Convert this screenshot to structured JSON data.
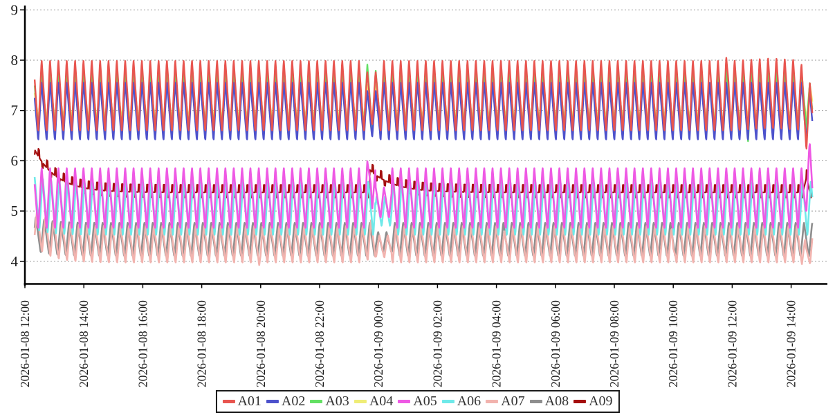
{
  "figure": {
    "background": "#ffffff",
    "axis_color": "#000000",
    "grid_color": "#999999",
    "tick_label_color": "#1a1a1a"
  },
  "legend": {
    "items": [
      {
        "label": "A01",
        "color": "#e8554f"
      },
      {
        "label": "A02",
        "color": "#4d52cc"
      },
      {
        "label": "A03",
        "color": "#63e063"
      },
      {
        "label": "A04",
        "color": "#efed77"
      },
      {
        "label": "A05",
        "color": "#ee59e4"
      },
      {
        "label": "A06",
        "color": "#6fe9e9"
      },
      {
        "label": "A07",
        "color": "#f2b3ae"
      },
      {
        "label": "A08",
        "color": "#8e8e8e"
      },
      {
        "label": "A09",
        "color": "#a40f0f"
      }
    ]
  },
  "chart_data": {
    "type": "line",
    "title": "",
    "xlabel": "",
    "ylabel": "",
    "grid": "horizontal-dashed",
    "legend_position": "bottom-center",
    "y_axis": {
      "min": 3.55,
      "max": 9.05,
      "ticks": [
        4,
        5,
        6,
        7,
        8,
        9
      ]
    },
    "x_axis": {
      "start": "2026-01-08 12:00",
      "end": "2026-01-09 14:00",
      "tick_interval_hours": 2,
      "tick_hours": [
        0,
        2,
        4,
        6,
        8,
        10,
        12,
        14,
        16,
        18,
        20,
        22,
        24,
        26
      ],
      "tick_labels": [
        "2026-01-08 12:00",
        "2026-01-08 14:00",
        "2026-01-08 16:00",
        "2026-01-08 18:00",
        "2026-01-08 20:00",
        "2026-01-08 22:00",
        "2026-01-09 00:00",
        "2026-01-09 02:00",
        "2026-01-09 04:00",
        "2026-01-09 06:00",
        "2026-01-09 08:00",
        "2026-01-09 10:00",
        "2026-01-09 12:00",
        "2026-01-09 14:00"
      ]
    },
    "t_start_hours": 0.33,
    "t_end_hours": 26.72,
    "oscillation_period_hours": 0.2833,
    "rise_fraction": 0.4,
    "render_order": [
      "A04",
      "A03",
      "A02",
      "A01",
      "A08",
      "A07",
      "A09",
      "A06",
      "A05"
    ],
    "series": [
      {
        "name": "A01",
        "color": "#e8554f",
        "pattern": "triangle",
        "min": 6.55,
        "max": 8.02,
        "phase": 0.6,
        "damp": [
          {
            "from": 11.55,
            "to": 12.05,
            "scale": 0.75,
            "offset": -0.05
          }
        ],
        "bumps": [
          {
            "t": 23.87,
            "w": 0.1,
            "a": 0.2
          },
          {
            "t": 25.3,
            "w": 1.3,
            "a": 0.05
          },
          {
            "t": 26.6,
            "w": 0.3,
            "a": -0.5
          }
        ]
      },
      {
        "name": "A02",
        "color": "#4d52cc",
        "pattern": "triangle",
        "min": 6.38,
        "max": 7.58,
        "phase": 0.6,
        "damp": [
          {
            "from": 11.55,
            "to": 12.05,
            "scale": 0.8,
            "offset": -0.05
          }
        ],
        "bumps": [
          {
            "t": 26.68,
            "w": 0.2,
            "a": -0.2
          }
        ]
      },
      {
        "name": "A03",
        "color": "#63e063",
        "pattern": "triangle",
        "min": 6.63,
        "max": 7.8,
        "phase": 0.61,
        "bumps": [
          {
            "t": 11.62,
            "w": 0.12,
            "a": 0.12
          },
          {
            "t": 23.25,
            "w": 0.08,
            "a": -0.3
          },
          {
            "t": 24.55,
            "w": 0.08,
            "a": -0.3
          },
          {
            "t": 25.3,
            "w": 0.08,
            "a": -0.3
          },
          {
            "t": 26.66,
            "w": 0.15,
            "a": -0.3
          }
        ]
      },
      {
        "name": "A04",
        "color": "#efed77",
        "pattern": "triangle",
        "min": 6.82,
        "max": 7.52,
        "phase": 0.62,
        "bumps": [
          {
            "t": 23.7,
            "w": 0.08,
            "a": -0.35
          }
        ]
      },
      {
        "name": "A05",
        "color": "#ee59e4",
        "pattern": "triangle",
        "min": 4.62,
        "max": 5.88,
        "phase": 0.6,
        "damp": [
          {
            "from": 11.9,
            "to": 12.45,
            "scale": 0.5,
            "offset": -0.08
          }
        ],
        "bumps": [
          {
            "t": 11.74,
            "w": 0.16,
            "a": 0.56
          },
          {
            "t": 26.6,
            "w": 0.2,
            "a": 0.58
          }
        ]
      },
      {
        "name": "A06",
        "color": "#6fe9e9",
        "pattern": "triangle",
        "min": 4.5,
        "max": 5.62,
        "phase": 0.73,
        "decays": [
          {
            "t0": 0.33,
            "a": 0.12,
            "tau": 0.5
          }
        ],
        "damp": [
          {
            "from": 11.9,
            "to": 12.45,
            "scale": 0.55,
            "offset": -0.06
          }
        ]
      },
      {
        "name": "A07",
        "color": "#f2b3ae",
        "pattern": "triangle",
        "min": 3.95,
        "max": 4.72,
        "phase": 0.05,
        "decays": [
          {
            "t0": 0.33,
            "a": 0.35,
            "tau": 0.55
          }
        ],
        "damp": [
          {
            "from": 11.9,
            "to": 12.45,
            "scale": 0.6,
            "offset": -0.04
          }
        ],
        "bumps": [
          {
            "t": 8.0,
            "w": 0.07,
            "a": -0.18
          },
          {
            "t": 16.3,
            "w": 0.07,
            "a": -0.15
          },
          {
            "t": 22.0,
            "w": 0.08,
            "a": -0.2
          },
          {
            "t": 11.74,
            "w": 0.2,
            "a": 0.12
          },
          {
            "t": 26.5,
            "w": 0.15,
            "a": -0.32
          }
        ]
      },
      {
        "name": "A08",
        "color": "#8e8e8e",
        "pattern": "triangle",
        "min": 4.08,
        "max": 4.78,
        "phase": 0.9,
        "decays": [
          {
            "t0": 0.33,
            "a": 0.12,
            "tau": 0.5
          }
        ],
        "damp": [
          {
            "from": 11.9,
            "to": 12.45,
            "scale": 0.6,
            "offset": -0.05
          }
        ]
      },
      {
        "name": "A09",
        "color": "#a40f0f",
        "pattern": "pulse",
        "base": 5.37,
        "high": 5.52,
        "low": 5.27,
        "phase": 0.6,
        "high_window": [
          0.0,
          0.15
        ],
        "low_window": [
          0.45,
          0.58
        ],
        "decays": [
          {
            "t0": 0.33,
            "a": 0.85,
            "tau": 0.75
          },
          {
            "t0": 11.7,
            "a": 0.45,
            "tau": 0.8
          }
        ],
        "bumps": [
          {
            "t": 26.52,
            "w": 0.12,
            "a": 0.3
          }
        ]
      }
    ]
  }
}
